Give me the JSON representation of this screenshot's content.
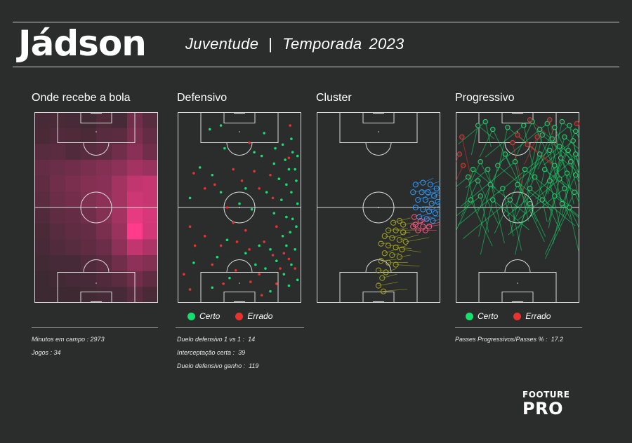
{
  "header": {
    "player": "Jádson",
    "team": "Juventude",
    "season_label": "Temporada",
    "season_year": "2023"
  },
  "panels": {
    "heatmap": {
      "title": "Onde recebe a bola"
    },
    "defensive": {
      "title": "Defensivo"
    },
    "cluster": {
      "title": "Cluster"
    },
    "progressive": {
      "title": "Progressivo"
    }
  },
  "legend": {
    "success": "Certo",
    "fail": "Errado"
  },
  "colors": {
    "background": "#2b2c2c",
    "success": "#14e06e",
    "fail": "#e8322e",
    "heat": "#ff3c8c",
    "cluster_blue": "#2e9bff",
    "cluster_pink": "#ff5a8a",
    "cluster_olive": "#a6a61e"
  },
  "stats": {
    "minutes": {
      "label": "Minutos em campo :",
      "value": "2973"
    },
    "games": {
      "label": "Jogos :",
      "value": "34"
    },
    "duel_1v1": {
      "label": "Duelo defensivo 1 vs 1 :",
      "value": "14"
    },
    "interceptions": {
      "label": "Interceptação certa :",
      "value": "39"
    },
    "duels_won": {
      "label": "Duelo defensivo ganho :",
      "value": "119"
    },
    "progressive_ratio": {
      "label": "Passes Progressivos/Passes % :",
      "value": "17.2"
    }
  },
  "logo": {
    "top": "FOOTURE",
    "bottom": "PRO"
  },
  "chart_data": [
    {
      "type": "heatmap",
      "title": "Onde recebe a bola",
      "columns": 8,
      "rows": 12,
      "intensity": [
        [
          0.1,
          0.12,
          0.1,
          0.08,
          0.14,
          0.1,
          0.3,
          0.18
        ],
        [
          0.12,
          0.15,
          0.14,
          0.12,
          0.18,
          0.2,
          0.35,
          0.25
        ],
        [
          0.18,
          0.2,
          0.15,
          0.18,
          0.22,
          0.3,
          0.42,
          0.3
        ],
        [
          0.25,
          0.28,
          0.3,
          0.35,
          0.4,
          0.45,
          0.55,
          0.5
        ],
        [
          0.22,
          0.3,
          0.35,
          0.4,
          0.42,
          0.55,
          0.7,
          0.72
        ],
        [
          0.2,
          0.28,
          0.32,
          0.38,
          0.45,
          0.55,
          0.75,
          0.72
        ],
        [
          0.15,
          0.22,
          0.25,
          0.3,
          0.4,
          0.55,
          0.88,
          0.8
        ],
        [
          0.12,
          0.18,
          0.22,
          0.25,
          0.35,
          0.5,
          1.0,
          0.78
        ],
        [
          0.1,
          0.15,
          0.18,
          0.22,
          0.28,
          0.45,
          0.7,
          0.6
        ],
        [
          0.08,
          0.1,
          0.1,
          0.15,
          0.2,
          0.3,
          0.45,
          0.4
        ],
        [
          0.05,
          0.08,
          0.1,
          0.1,
          0.15,
          0.2,
          0.3,
          0.22
        ],
        [
          0.05,
          0.05,
          0.06,
          0.08,
          0.1,
          0.1,
          0.18,
          0.12
        ]
      ]
    },
    {
      "type": "scatter",
      "title": "Defensivo",
      "series": [
        {
          "name": "Certo",
          "points": [
            [
              0.26,
              0.09
            ],
            [
              0.35,
              0.07
            ],
            [
              0.7,
              0.11
            ],
            [
              0.92,
              0.14
            ],
            [
              0.85,
              0.17
            ],
            [
              0.79,
              0.19
            ],
            [
              0.93,
              0.21
            ],
            [
              0.97,
              0.23
            ],
            [
              0.87,
              0.25
            ],
            [
              0.38,
              0.19
            ],
            [
              0.62,
              0.21
            ],
            [
              0.68,
              0.23
            ],
            [
              0.18,
              0.29
            ],
            [
              0.78,
              0.27
            ],
            [
              0.9,
              0.3
            ],
            [
              0.95,
              0.3
            ],
            [
              0.28,
              0.33
            ],
            [
              0.82,
              0.35
            ],
            [
              0.88,
              0.38
            ],
            [
              0.96,
              0.36
            ],
            [
              0.35,
              0.42
            ],
            [
              0.55,
              0.4
            ],
            [
              0.72,
              0.42
            ],
            [
              0.92,
              0.42
            ],
            [
              0.1,
              0.45
            ],
            [
              0.5,
              0.48
            ],
            [
              0.84,
              0.46
            ],
            [
              0.97,
              0.48
            ],
            [
              0.6,
              0.51
            ],
            [
              0.78,
              0.53
            ],
            [
              0.88,
              0.55
            ],
            [
              0.93,
              0.56
            ],
            [
              0.96,
              0.6
            ],
            [
              0.91,
              0.63
            ],
            [
              0.85,
              0.65
            ],
            [
              0.4,
              0.67
            ],
            [
              0.66,
              0.7
            ],
            [
              0.75,
              0.72
            ],
            [
              0.88,
              0.7
            ],
            [
              0.95,
              0.72
            ],
            [
              0.55,
              0.74
            ],
            [
              0.32,
              0.76
            ],
            [
              0.8,
              0.78
            ],
            [
              0.92,
              0.8
            ],
            [
              0.13,
              0.79
            ],
            [
              0.63,
              0.8
            ],
            [
              0.71,
              0.82
            ],
            [
              0.86,
              0.85
            ],
            [
              0.42,
              0.87
            ],
            [
              0.97,
              0.88
            ],
            [
              0.28,
              0.92
            ],
            [
              0.9,
              0.91
            ],
            [
              0.75,
              0.94
            ]
          ]
        },
        {
          "name": "Errado",
          "points": [
            [
              0.91,
              0.07
            ],
            [
              0.58,
              0.16
            ],
            [
              0.9,
              0.24
            ],
            [
              0.13,
              0.32
            ],
            [
              0.45,
              0.3
            ],
            [
              0.62,
              0.31
            ],
            [
              0.75,
              0.33
            ],
            [
              0.22,
              0.4
            ],
            [
              0.52,
              0.36
            ],
            [
              0.66,
              0.4
            ],
            [
              0.3,
              0.38
            ],
            [
              0.77,
              0.45
            ],
            [
              0.4,
              0.5
            ],
            [
              0.1,
              0.6
            ],
            [
              0.45,
              0.58
            ],
            [
              0.55,
              0.62
            ],
            [
              0.22,
              0.65
            ],
            [
              0.8,
              0.6
            ],
            [
              0.35,
              0.7
            ],
            [
              0.48,
              0.68
            ],
            [
              0.58,
              0.72
            ],
            [
              0.14,
              0.7
            ],
            [
              0.7,
              0.68
            ],
            [
              0.86,
              0.74
            ],
            [
              0.28,
              0.8
            ],
            [
              0.77,
              0.75
            ],
            [
              0.9,
              0.77
            ],
            [
              0.47,
              0.83
            ],
            [
              0.66,
              0.85
            ],
            [
              0.83,
              0.82
            ],
            [
              0.05,
              0.85
            ],
            [
              0.59,
              0.89
            ],
            [
              0.37,
              0.9
            ],
            [
              0.8,
              0.9
            ],
            [
              0.1,
              0.93
            ],
            [
              0.68,
              0.96
            ],
            [
              0.95,
              0.82
            ]
          ]
        }
      ]
    },
    {
      "type": "scatter",
      "title": "Cluster",
      "series": [
        {
          "name": "",
          "color": "#2e9bff",
          "points": [
            [
              0.8,
              0.38
            ],
            [
              0.86,
              0.37
            ],
            [
              0.92,
              0.38
            ],
            [
              0.97,
              0.4
            ],
            [
              0.78,
              0.42
            ],
            [
              0.85,
              0.42
            ],
            [
              0.9,
              0.42
            ],
            [
              0.95,
              0.44
            ],
            [
              0.82,
              0.46
            ],
            [
              0.88,
              0.46
            ],
            [
              0.93,
              0.48
            ],
            [
              0.98,
              0.47
            ],
            [
              0.8,
              0.5
            ],
            [
              0.86,
              0.51
            ],
            [
              0.91,
              0.52
            ],
            [
              0.96,
              0.53
            ],
            [
              0.83,
              0.55
            ],
            [
              0.89,
              0.56
            ],
            [
              0.94,
              0.57
            ]
          ]
        },
        {
          "name": "",
          "color": "#ff5a8a",
          "points": [
            [
              0.79,
              0.55
            ],
            [
              0.84,
              0.57
            ],
            [
              0.8,
              0.59
            ],
            [
              0.86,
              0.6
            ],
            [
              0.91,
              0.6
            ],
            [
              0.82,
              0.62
            ],
            [
              0.88,
              0.62
            ],
            [
              0.78,
              0.6
            ]
          ]
        },
        {
          "name": "",
          "color": "#a6a61e",
          "points": [
            [
              0.62,
              0.58
            ],
            [
              0.67,
              0.57
            ],
            [
              0.7,
              0.59
            ],
            [
              0.58,
              0.62
            ],
            [
              0.64,
              0.62
            ],
            [
              0.7,
              0.63
            ],
            [
              0.55,
              0.65
            ],
            [
              0.61,
              0.66
            ],
            [
              0.67,
              0.67
            ],
            [
              0.72,
              0.68
            ],
            [
              0.52,
              0.69
            ],
            [
              0.58,
              0.7
            ],
            [
              0.64,
              0.71
            ],
            [
              0.69,
              0.72
            ],
            [
              0.55,
              0.74
            ],
            [
              0.61,
              0.75
            ],
            [
              0.67,
              0.76
            ],
            [
              0.52,
              0.78
            ],
            [
              0.58,
              0.79
            ],
            [
              0.64,
              0.8
            ],
            [
              0.5,
              0.83
            ],
            [
              0.56,
              0.84
            ],
            [
              0.53,
              0.87
            ],
            [
              0.5,
              0.91
            ],
            [
              0.54,
              0.94
            ]
          ]
        }
      ]
    },
    {
      "type": "scatter",
      "title": "Progressivo",
      "series": [
        {
          "name": "Certo",
          "points": [
            [
              0.18,
              0.07
            ],
            [
              0.24,
              0.05
            ],
            [
              0.3,
              0.09
            ],
            [
              0.42,
              0.08
            ],
            [
              0.55,
              0.07
            ],
            [
              0.62,
              0.05
            ],
            [
              0.68,
              0.09
            ],
            [
              0.74,
              0.06
            ],
            [
              0.8,
              0.08
            ],
            [
              0.86,
              0.05
            ],
            [
              0.92,
              0.07
            ],
            [
              0.97,
              0.1
            ],
            [
              0.88,
              0.13
            ],
            [
              0.95,
              0.15
            ],
            [
              0.78,
              0.14
            ],
            [
              0.7,
              0.12
            ],
            [
              0.84,
              0.18
            ],
            [
              0.91,
              0.2
            ],
            [
              0.97,
              0.22
            ],
            [
              0.76,
              0.2
            ],
            [
              0.68,
              0.22
            ],
            [
              0.85,
              0.24
            ],
            [
              0.93,
              0.26
            ],
            [
              0.8,
              0.28
            ],
            [
              0.72,
              0.3
            ],
            [
              0.9,
              0.32
            ],
            [
              0.97,
              0.33
            ],
            [
              0.84,
              0.35
            ],
            [
              0.76,
              0.36
            ],
            [
              0.64,
              0.34
            ],
            [
              0.56,
              0.3
            ],
            [
              0.48,
              0.26
            ],
            [
              0.4,
              0.22
            ],
            [
              0.34,
              0.28
            ],
            [
              0.26,
              0.3
            ],
            [
              0.2,
              0.26
            ],
            [
              0.14,
              0.3
            ],
            [
              0.1,
              0.34
            ],
            [
              0.18,
              0.36
            ],
            [
              0.28,
              0.38
            ],
            [
              0.38,
              0.4
            ],
            [
              0.5,
              0.38
            ],
            [
              0.6,
              0.4
            ],
            [
              0.88,
              0.4
            ],
            [
              0.96,
              0.42
            ],
            [
              0.8,
              0.44
            ],
            [
              0.7,
              0.46
            ],
            [
              0.6,
              0.48
            ],
            [
              0.86,
              0.48
            ],
            [
              0.2,
              0.44
            ],
            [
              0.12,
              0.46
            ],
            [
              0.3,
              0.46
            ],
            [
              0.44,
              0.46
            ],
            [
              0.92,
              0.5
            ]
          ]
        },
        {
          "name": "Errado",
          "points": [
            [
              0.6,
              0.04
            ],
            [
              0.76,
              0.04
            ],
            [
              0.66,
              0.13
            ],
            [
              0.58,
              0.17
            ],
            [
              0.05,
              0.13
            ],
            [
              0.03,
              0.22
            ],
            [
              0.5,
              0.12
            ],
            [
              0.46,
              0.16
            ],
            [
              0.06,
              0.28
            ],
            [
              0.98,
              0.06
            ]
          ]
        }
      ]
    }
  ]
}
